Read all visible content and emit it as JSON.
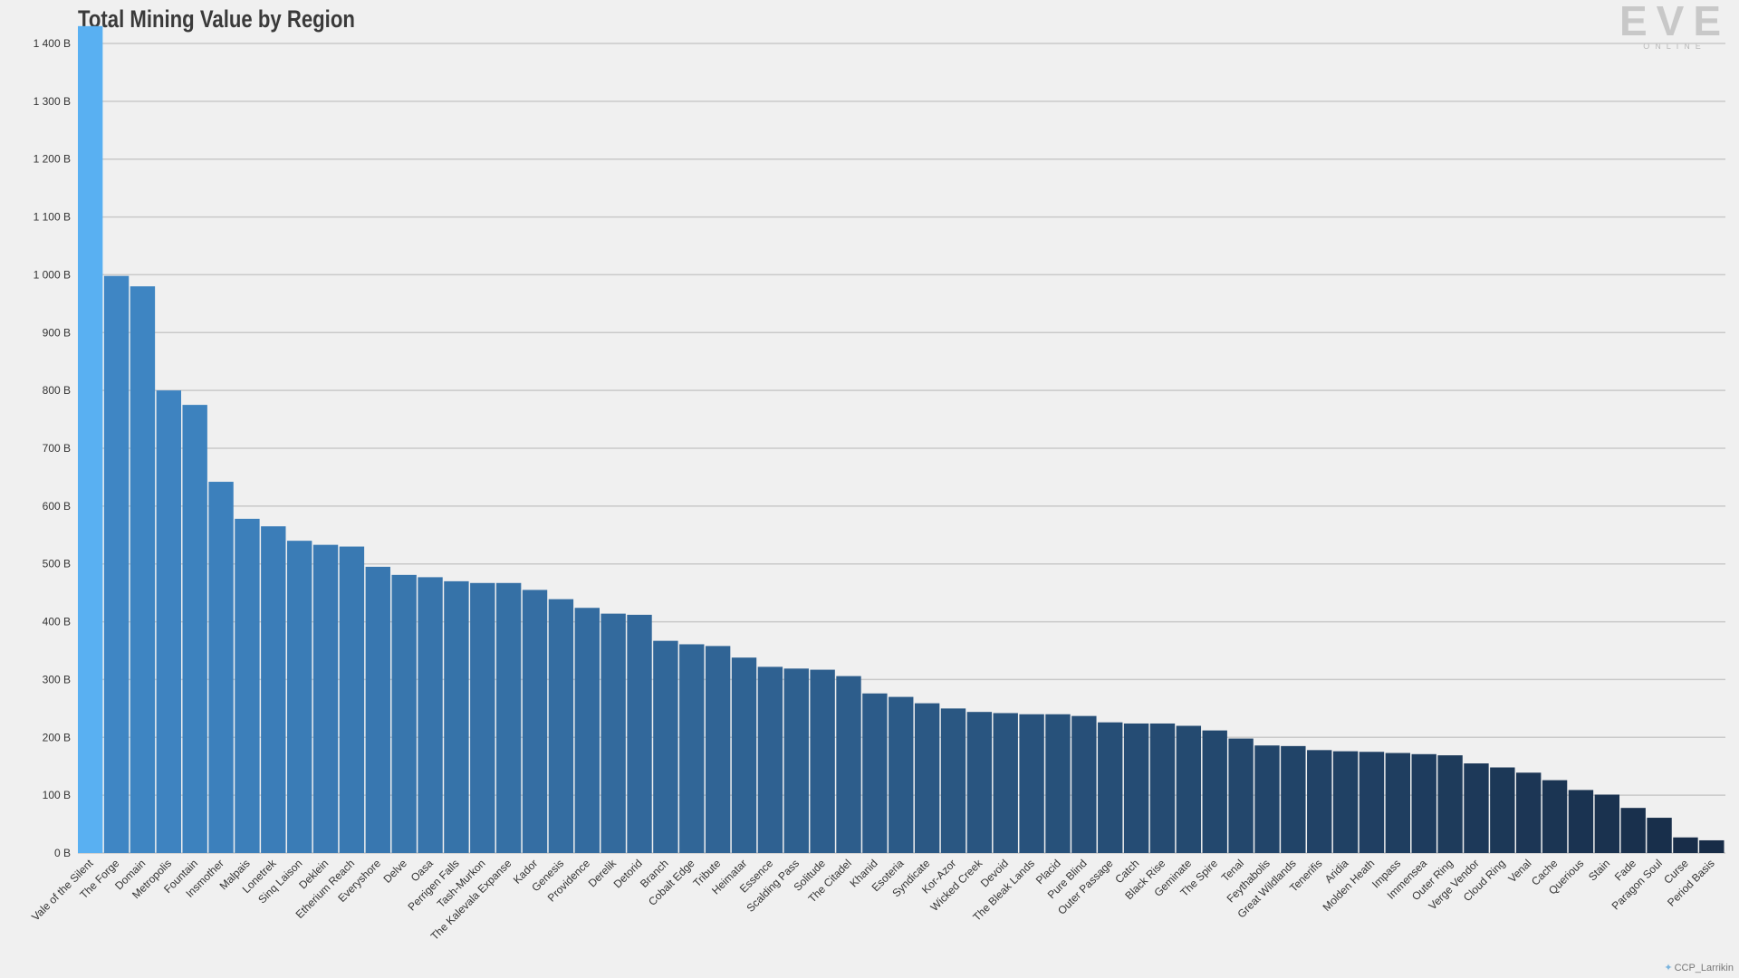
{
  "chart_data": {
    "type": "bar",
    "title": "Total Mining Value by Region",
    "xlabel": "",
    "ylabel": "",
    "ylim": [
      0,
      1400
    ],
    "yticks": [
      "0 B",
      "100 B",
      "200 B",
      "300 B",
      "400 B",
      "500 B",
      "600 B",
      "700 B",
      "800 B",
      "900 B",
      "1 000 B",
      "1 100 B",
      "1 200 B",
      "1 300 B",
      "1 400 B"
    ],
    "grid": true,
    "categories": [
      "Vale of the Silent",
      "The Forge",
      "Domain",
      "Metropolis",
      "Fountain",
      "Insmother",
      "Malpais",
      "Lonetrek",
      "Sinq Laison",
      "Deklein",
      "Etherium Reach",
      "Everyshore",
      "Delve",
      "Oasa",
      "Perrigen Falls",
      "Tash-Murkon",
      "The Kalevala Expanse",
      "Kador",
      "Genesis",
      "Providence",
      "Derelik",
      "Detorid",
      "Branch",
      "Cobalt Edge",
      "Tribute",
      "Heimatar",
      "Essence",
      "Scalding Pass",
      "Solitude",
      "The Citadel",
      "Khanid",
      "Esoteria",
      "Syndicate",
      "Kor-Azor",
      "Wicked Creek",
      "Devoid",
      "The Bleak Lands",
      "Placid",
      "Pure Blind",
      "Outer Passage",
      "Catch",
      "Black Rise",
      "Geminate",
      "The Spire",
      "Tenal",
      "Feythabolis",
      "Great Wildlands",
      "Tenerifis",
      "Aridia",
      "Molden Heath",
      "Impass",
      "Immensea",
      "Outer Ring",
      "Verge Vendor",
      "Cloud Ring",
      "Venal",
      "Cache",
      "Querious",
      "Stain",
      "Fade",
      "Paragon Soul",
      "Curse",
      "Period Basis"
    ],
    "values": [
      1430,
      998,
      980,
      800,
      775,
      642,
      578,
      565,
      540,
      533,
      530,
      495,
      481,
      477,
      470,
      467,
      467,
      455,
      439,
      424,
      414,
      412,
      367,
      361,
      358,
      338,
      322,
      319,
      317,
      306,
      276,
      270,
      259,
      250,
      244,
      242,
      240,
      240,
      237,
      226,
      224,
      224,
      220,
      212,
      198,
      186,
      185,
      178,
      176,
      175,
      173,
      171,
      169,
      155,
      148,
      139,
      126,
      109,
      101,
      78,
      61,
      27,
      22
    ],
    "colors": {
      "highlight": "#59b0f2",
      "bar_start": "#3f86c4",
      "bar_end": "#172c47",
      "grid": "#c9c9c9"
    }
  },
  "logo": {
    "text": "EVE",
    "subtext": "ONLINE"
  },
  "credit": {
    "icon": "twitter-bird-icon",
    "text": "CCP_Larrikin"
  }
}
